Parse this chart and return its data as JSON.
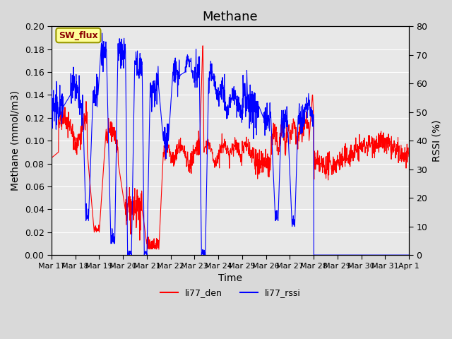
{
  "title": "Methane",
  "xlabel": "Time",
  "ylabel_left": "Methane (mmol/m3)",
  "ylabel_right": "RSSI (%)",
  "ylim_left": [
    0.0,
    0.2
  ],
  "ylim_right": [
    0,
    80
  ],
  "yticks_left": [
    0.0,
    0.02,
    0.04,
    0.06,
    0.08,
    0.1,
    0.12,
    0.14,
    0.16,
    0.18,
    0.2
  ],
  "yticks_right": [
    0,
    10,
    20,
    30,
    40,
    50,
    60,
    70,
    80
  ],
  "xtick_labels": [
    "Mar 17",
    "Mar 18",
    "Mar 19",
    "Mar 20",
    "Mar 21",
    "Mar 22",
    "Mar 23",
    "Mar 24",
    "Mar 25",
    "Mar 26",
    "Mar 27",
    "Mar 28",
    "Mar 29",
    "Mar 30",
    "Mar 31",
    "Apr 1"
  ],
  "color_red": "#ff0000",
  "color_blue": "#0000ff",
  "background_color": "#d9d9d9",
  "plot_bg_color": "#e8e8e8",
  "annotation_text": "SW_flux",
  "annotation_bg": "#ffff99",
  "annotation_border": "#999900",
  "legend_labels": [
    "li77_den",
    "li77_rssi"
  ],
  "title_fontsize": 13,
  "axis_fontsize": 10,
  "tick_fontsize": 9
}
